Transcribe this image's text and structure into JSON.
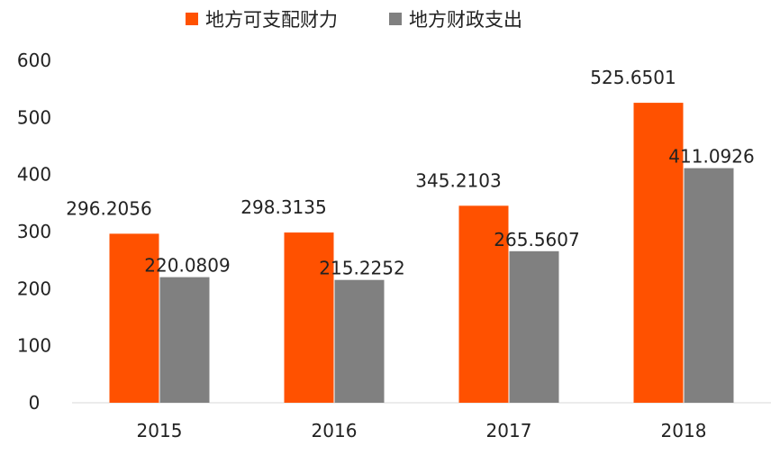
{
  "chart_data": {
    "type": "bar",
    "categories": [
      "2015",
      "2016",
      "2017",
      "2018"
    ],
    "series": [
      {
        "name": "地方可支配财力",
        "color": "#ff5100",
        "values": [
          296.2056,
          298.3135,
          345.2103,
          525.6501
        ]
      },
      {
        "name": "地方财政支出",
        "color": "#808080",
        "values": [
          220.0809,
          215.2252,
          265.5607,
          411.0926
        ]
      }
    ],
    "data_labels": [
      [
        "296.2056",
        "298.3135",
        "345.2103",
        "525.6501"
      ],
      [
        "220.0809",
        "215.2252",
        "265.5607",
        "411.0926"
      ]
    ],
    "y_ticks": [
      "0",
      "100",
      "200",
      "300",
      "400",
      "500",
      "600"
    ],
    "ylim": [
      0,
      600
    ],
    "grid": false,
    "legend_position": "top",
    "title": "",
    "xlabel": "",
    "ylabel": ""
  }
}
